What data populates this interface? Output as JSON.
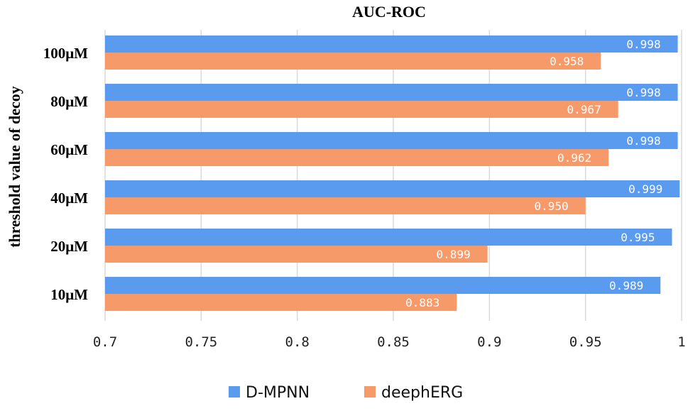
{
  "chart_data": {
    "type": "bar",
    "orientation": "horizontal",
    "title": "AUC-ROC",
    "xlabel": "",
    "ylabel": "threshold value of decoy",
    "categories": [
      "100μM",
      "80μM",
      "60μM",
      "40μM",
      "20μM",
      "10μM"
    ],
    "series": [
      {
        "name": "D-MPNN",
        "color": "#5b9bef",
        "values": [
          0.998,
          0.998,
          0.998,
          0.999,
          0.995,
          0.989
        ],
        "labels": [
          "0.998",
          "0.998",
          "0.998",
          "0.999",
          "0.995",
          "0.989"
        ]
      },
      {
        "name": "deephERG",
        "color": "#f79a6a",
        "values": [
          0.958,
          0.967,
          0.962,
          0.95,
          0.899,
          0.883
        ],
        "labels": [
          "0.958",
          "0.967",
          "0.962",
          "0.950",
          "0.899",
          "0.883"
        ]
      }
    ],
    "xlim": [
      0.7,
      1.0
    ],
    "xticks": [
      0.7,
      0.75,
      0.8,
      0.85,
      0.9,
      0.95,
      1.0
    ],
    "xtick_labels": [
      "0.7",
      "0.75",
      "0.8",
      "0.85",
      "0.9",
      "0.95",
      "1"
    ],
    "grid": true,
    "legend_position": "bottom-center"
  }
}
